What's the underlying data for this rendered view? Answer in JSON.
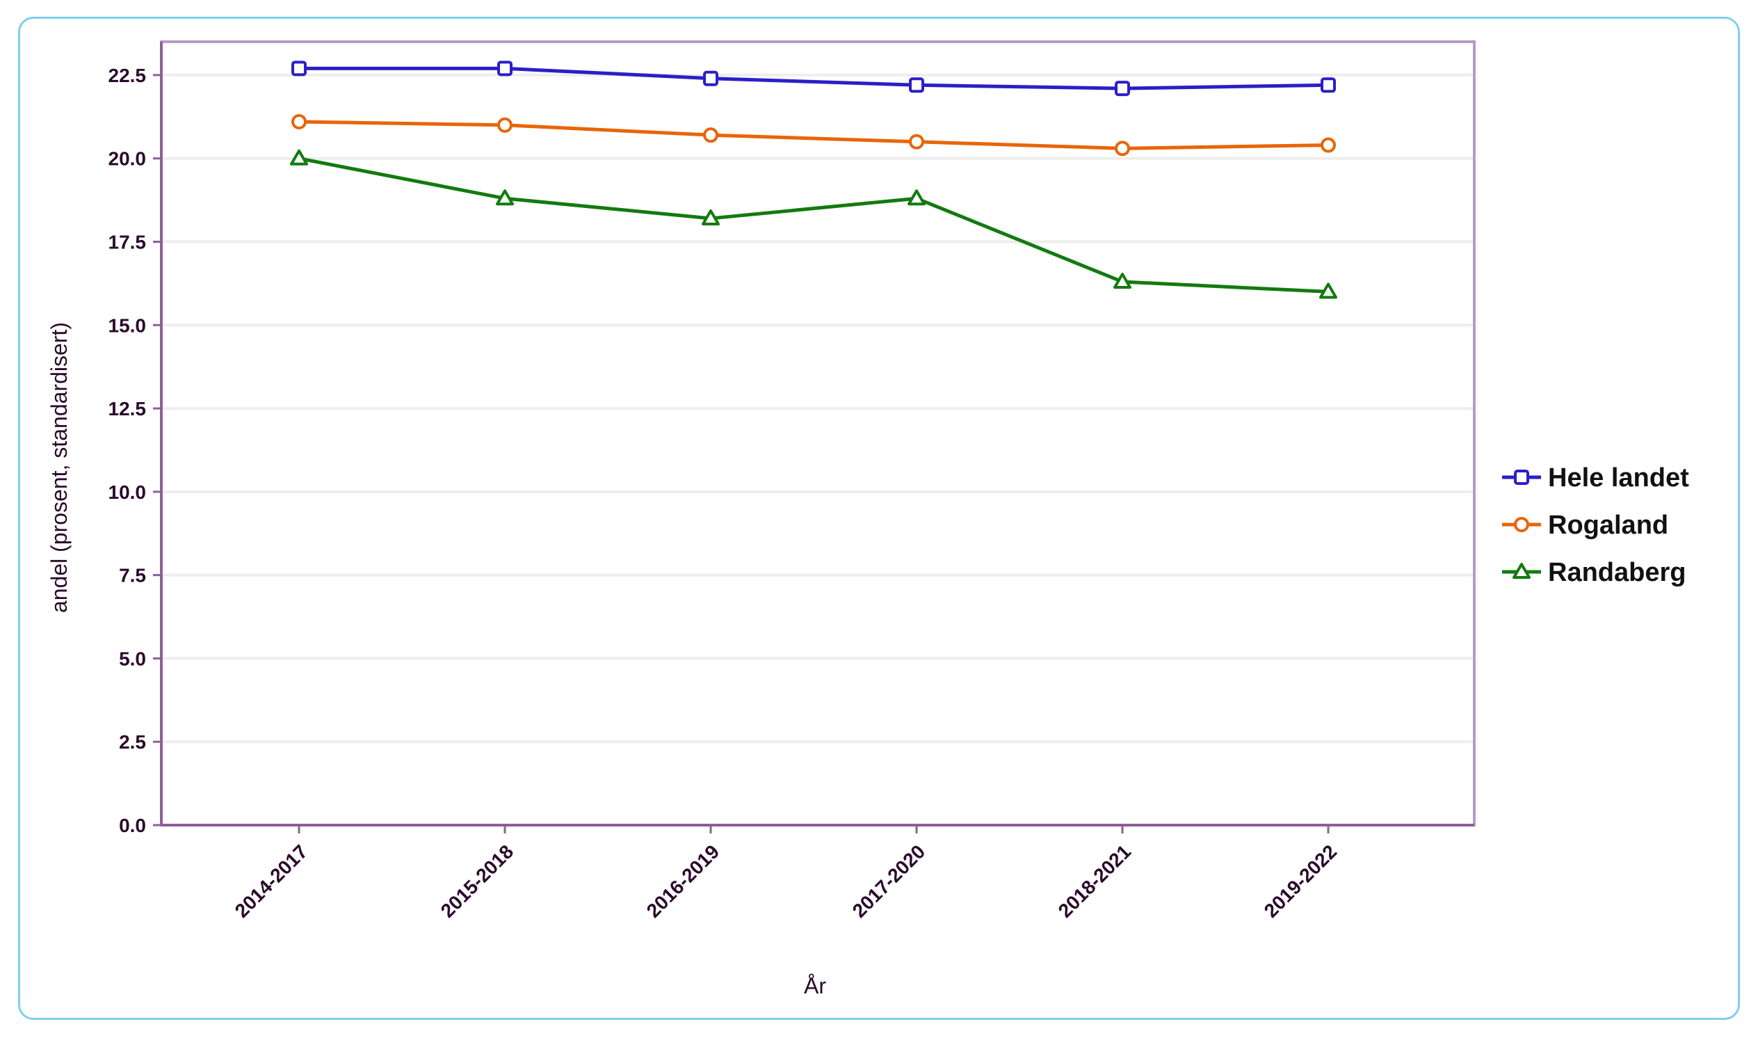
{
  "chart_data": {
    "type": "line",
    "title": "",
    "xlabel": "År",
    "ylabel": "andel (prosent, standardisert)",
    "categories": [
      "2014-2017",
      "2015-2018",
      "2016-2019",
      "2017-2020",
      "2018-2021",
      "2019-2022"
    ],
    "ylim": [
      0,
      23.5
    ],
    "yticks": [
      0.0,
      2.5,
      5.0,
      7.5,
      10.0,
      12.5,
      15.0,
      17.5,
      20.0,
      22.5
    ],
    "ytick_labels": [
      "0.0",
      "2.5",
      "5.0",
      "7.5",
      "10.0",
      "12.5",
      "15.0",
      "17.5",
      "20.0",
      "22.5"
    ],
    "grid": true,
    "legend_position": "right",
    "series": [
      {
        "name": "Hele landet",
        "color": "#2b1fc7",
        "marker": "square",
        "values": [
          22.7,
          22.7,
          22.4,
          22.2,
          22.1,
          22.2
        ]
      },
      {
        "name": "Rogaland",
        "color": "#e8650a",
        "marker": "circle",
        "values": [
          21.1,
          21.0,
          20.7,
          20.5,
          20.3,
          20.4
        ]
      },
      {
        "name": "Randaberg",
        "color": "#137a10",
        "marker": "triangle",
        "values": [
          20.0,
          18.8,
          18.2,
          18.8,
          16.3,
          16.0
        ]
      }
    ]
  },
  "colors": {
    "frame": "#7fd0ea",
    "plot_border": "#b79bc4",
    "grid": "#eeeeee",
    "text": "#2a0a2a"
  }
}
